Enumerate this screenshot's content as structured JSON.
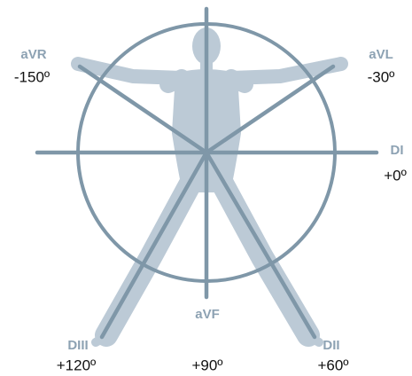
{
  "leads": [
    {
      "name": "aVR",
      "angle": "-150º"
    },
    {
      "name": "aVL",
      "angle": "-30º"
    },
    {
      "name": "DI",
      "angle": "+0º"
    },
    {
      "name": "DII",
      "angle": "+60º"
    },
    {
      "name": "aVF",
      "angle": "+90º"
    },
    {
      "name": "DIII",
      "angle": "+120º"
    }
  ]
}
